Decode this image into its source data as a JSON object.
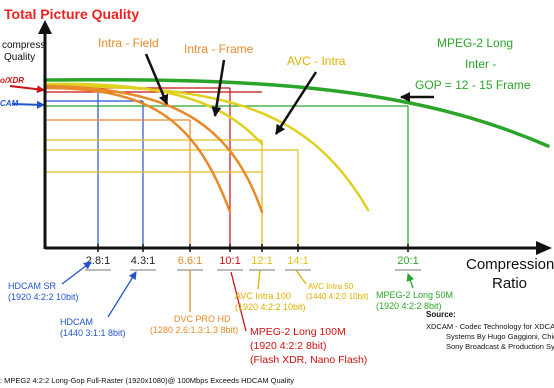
{
  "chart_data": {
    "type": "line",
    "title": "Total Picture Quality",
    "ylabel_lines": [
      "compress",
      "Quality"
    ],
    "xlabel_lines": [
      "Compression",
      "Ratio"
    ],
    "left_markers": [
      {
        "text": "o/XDR",
        "color": "#cc1111"
      },
      {
        "text": "CAM",
        "color": "#2255cc"
      }
    ],
    "x_ticks": [
      {
        "label": "2.8:1",
        "x": 2.8,
        "color": "#222222"
      },
      {
        "label": "4.3:1",
        "x": 4.3,
        "color": "#222222"
      },
      {
        "label": "6.6:1",
        "x": 6.6,
        "color": "#e8892a"
      },
      {
        "label": "10:1",
        "x": 10,
        "color": "#cc1111"
      },
      {
        "label": "12:1",
        "x": 12,
        "color": "#e0c020"
      },
      {
        "label": "14:1",
        "x": 14,
        "color": "#e0c020"
      },
      {
        "label": "20:1",
        "x": 20,
        "color": "#2aa52a"
      }
    ],
    "series": [
      {
        "name": "Intra - Field",
        "color": "#e8892a"
      },
      {
        "name": "Intra - Frame",
        "color": "#e8892a"
      },
      {
        "name": "AVC - Intra",
        "color": "#e0d020"
      },
      {
        "name": "MPEG-2 Long Inter - GOP = 12 - 15 Frame",
        "color": "#2aa52a"
      }
    ],
    "annotations": [
      {
        "id": "intra-field",
        "lines": [
          "Intra - Field"
        ],
        "color": "#e8892a"
      },
      {
        "id": "intra-frame",
        "lines": [
          "Intra - Frame"
        ],
        "color": "#e8892a"
      },
      {
        "id": "avc-intra",
        "lines": [
          "AVC - Intra"
        ],
        "color": "#e0b000"
      },
      {
        "id": "mpeg2-long",
        "lines": [
          "MPEG-2 Long",
          "Inter -",
          "GOP = 12 - 15 Frame"
        ],
        "color": "#2aa52a"
      }
    ],
    "format_labels": [
      {
        "id": "hdcam-sr",
        "lines": [
          "HDCAM SR",
          "(1920 4:2:2 10bit)"
        ],
        "color": "#2255cc"
      },
      {
        "id": "hdcam",
        "lines": [
          "HDCAM",
          "(1440 3:1:1 8bit)"
        ],
        "color": "#2255cc"
      },
      {
        "id": "dvcpro-hd",
        "lines": [
          "DVC PRO HD",
          "(1280 2.6:1.3:1.3 8bit)"
        ],
        "color": "#e8892a"
      },
      {
        "id": "mpeg2-100m",
        "lines": [
          "MPEG-2 Long 100M",
          "(1920 4:2:2 8bit)",
          "(Flash XDR, Nano Flash)"
        ],
        "color": "#cc1111"
      },
      {
        "id": "avc-intra-100",
        "lines": [
          "AVC Intra 100",
          "(1920 4:2:2 10bit)"
        ],
        "color": "#e0b000"
      },
      {
        "id": "avc-intra-50",
        "lines": [
          "AVC Intra 50",
          "(1440 4:2:0 10bit)"
        ],
        "color": "#e0b000"
      },
      {
        "id": "mpeg2-50m",
        "lines": [
          "MPEG-2 Long 50M",
          "(1920 4:2:2 8bit)"
        ],
        "color": "#2aa52a"
      }
    ],
    "source_title": "Source:",
    "source_lines": [
      "XDCAM - Codec Technology for XDCAM Tapeless",
      "Systems By Hugo Gaggioni, Chief Tech",
      "Sony Broadcast & Production Systems I"
    ],
    "footnote": ": MPEG2 4:2:2 Long-Gop Full-Raster (1920x1080)@ 100Mbps Exceeds HDCAM Quality",
    "grid": false,
    "legend": "none"
  }
}
